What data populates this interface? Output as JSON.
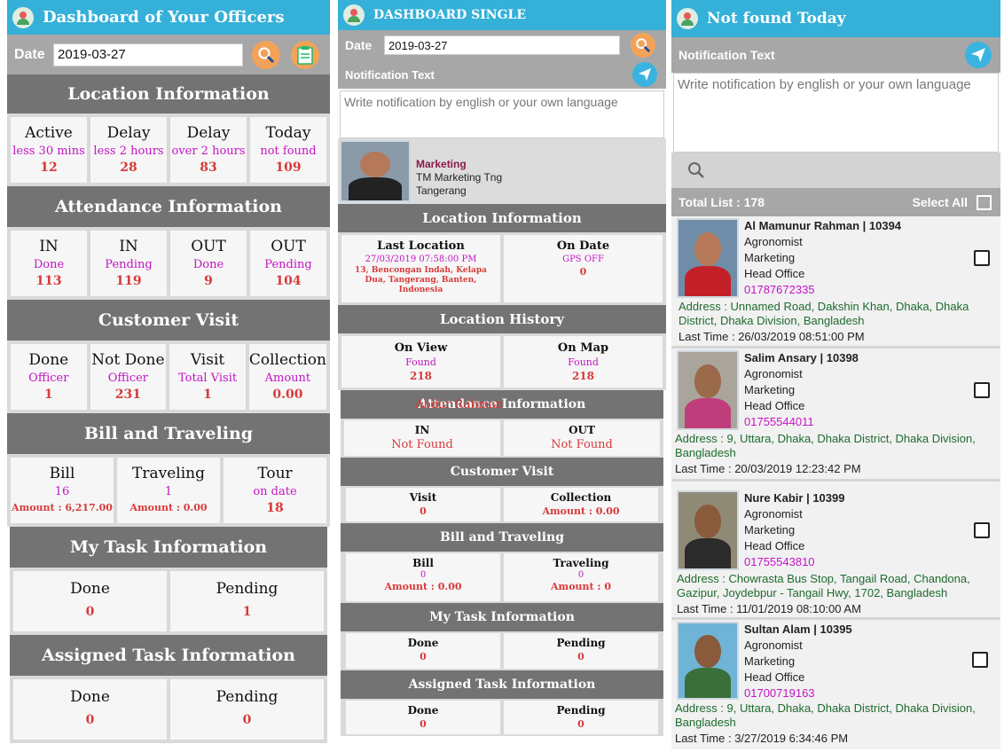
{
  "p1": {
    "title": "Dashboard of Your Officers",
    "date_label": "Date",
    "date_value": "2019-03-27",
    "location": {
      "title": "Location Information",
      "cells": [
        {
          "l": "Active",
          "s": "less 30 mins",
          "v": "12"
        },
        {
          "l": "Delay",
          "s": "less 2 hours",
          "v": "28"
        },
        {
          "l": "Delay",
          "s": "over 2 hours",
          "v": "83"
        },
        {
          "l": "Today",
          "s": "not found",
          "v": "109"
        }
      ]
    },
    "attendance": {
      "title": "Attendance Information",
      "cells": [
        {
          "l": "IN",
          "s": "Done",
          "v": "113"
        },
        {
          "l": "IN",
          "s": "Pending",
          "v": "119"
        },
        {
          "l": "OUT",
          "s": "Done",
          "v": "9"
        },
        {
          "l": "OUT",
          "s": "Pending",
          "v": "104"
        }
      ]
    },
    "visit": {
      "title": "Customer Visit",
      "cells": [
        {
          "l": "Done",
          "s": "Officer",
          "v": "1"
        },
        {
          "l": "Not Done",
          "s": "Officer",
          "v": "231"
        },
        {
          "l": "Visit",
          "s": "Total Visit",
          "v": "1"
        },
        {
          "l": "Collection",
          "s": "Amount",
          "v": "0.00"
        }
      ]
    },
    "bill": {
      "title": "Bill and Traveling",
      "cells": [
        {
          "l": "Bill",
          "s": "16",
          "v": "Amount : 6,217.00"
        },
        {
          "l": "Traveling",
          "s": "1",
          "v": "Amount : 0.00"
        },
        {
          "l": "Tour",
          "s": "on date",
          "v": "18"
        }
      ]
    },
    "mytask": {
      "title": "My Task Information",
      "cells": [
        {
          "l": "Done",
          "v": "0"
        },
        {
          "l": "Pending",
          "v": "1"
        }
      ]
    },
    "assigned": {
      "title": "Assigned Task Information",
      "cells": [
        {
          "l": "Done",
          "v": "0"
        },
        {
          "l": "Pending",
          "v": "0"
        }
      ]
    }
  },
  "p2": {
    "title": "DASHBOARD SINGLE",
    "date_label": "Date",
    "date_value": "2019-03-27",
    "notif_label": "Notification Text",
    "notif_placeholder": "Write notification by english or your own language",
    "officer": {
      "dept": "Marketing",
      "line1": "TM Marketing Tng",
      "line2": "Tangerang"
    },
    "location": {
      "title": "Location Information",
      "c1": {
        "l": "Last Location",
        "s": "27/03/2019 07:58:00 PM",
        "v": "13, Bencongan Indah, Kelapa Dua, Tangerang, Banten, Indonesia"
      },
      "c2": {
        "l": "On Date",
        "s": "GPS OFF",
        "v": "0"
      }
    },
    "history": {
      "title": "Location History",
      "c1": {
        "l": "On View",
        "s": "Found",
        "v": "218"
      },
      "c2": {
        "l": "On Map",
        "s": "Found",
        "v": "218"
      }
    },
    "attendance": {
      "title": "Attendance Information",
      "overlay": "Abdur Rahman",
      "c1": {
        "l": "IN",
        "v": "Not Found"
      },
      "c2": {
        "l": "OUT",
        "v": "Not Found"
      }
    },
    "visit": {
      "title": "Customer Visit",
      "c1": {
        "l": "Visit",
        "v": "0"
      },
      "c2": {
        "l": "Collection",
        "v": "Amount : 0.00"
      }
    },
    "bill": {
      "title": "Bill and Traveling",
      "c1": {
        "l": "Bill",
        "s": "0",
        "v": "Amount : 0.00"
      },
      "c2": {
        "l": "Traveling",
        "s": "0",
        "v": "Amount : 0"
      }
    },
    "mytask": {
      "title": "My Task Information",
      "c1": {
        "l": "Done",
        "v": "0"
      },
      "c2": {
        "l": "Pending",
        "v": "0"
      }
    },
    "assigned": {
      "title": "Assigned Task Information",
      "c1": {
        "l": "Done",
        "v": "0"
      },
      "c2": {
        "l": "Pending",
        "v": "0"
      }
    }
  },
  "p3": {
    "title": "Not found Today",
    "notif_label": "Notification Text",
    "notif_placeholder": "Write notification by english or your own language",
    "total": "Total List : 178",
    "select_all": "Select All",
    "people": [
      {
        "name": "Al Mamunur Rahman | 10394",
        "role": "Agronomist",
        "dept": "Marketing",
        "office": "Head Office",
        "phone": "01787672335",
        "address": "Address : Unnamed Road, Dakshin Khan, Dhaka, Dhaka District, Dhaka Division, Bangladesh",
        "last": "Last Time : 26/03/2019 08:51:00 PM"
      },
      {
        "name": "Salim Ansary | 10398",
        "role": "Agronomist",
        "dept": "Marketing",
        "office": "Head Office",
        "phone": "01755544011",
        "address": "Address : 9, Uttara, Dhaka, Dhaka District, Dhaka Division, Bangladesh",
        "last": "Last Time : 20/03/2019 12:23:42 PM"
      },
      {
        "name": "Nure Kabir | 10399",
        "role": "Agronomist",
        "dept": "Marketing",
        "office": "Head Office",
        "phone": "01755543810",
        "address": "Address : Chowrasta Bus Stop, Tangail Road, Chandona, Gazipur, Joydebpur - Tangail Hwy, 1702, Bangladesh",
        "last": "Last Time : 11/01/2019 08:10:00 AM"
      },
      {
        "name": "Sultan Alam | 10395",
        "role": "Agronomist",
        "dept": "Marketing",
        "office": "Head Office",
        "phone": "01700719163",
        "address": "Address : 9, Uttara, Dhaka, Dhaka District, Dhaka Division, Bangladesh",
        "last": "Last Time : 3/27/2019 6:34:46 PM"
      }
    ]
  }
}
